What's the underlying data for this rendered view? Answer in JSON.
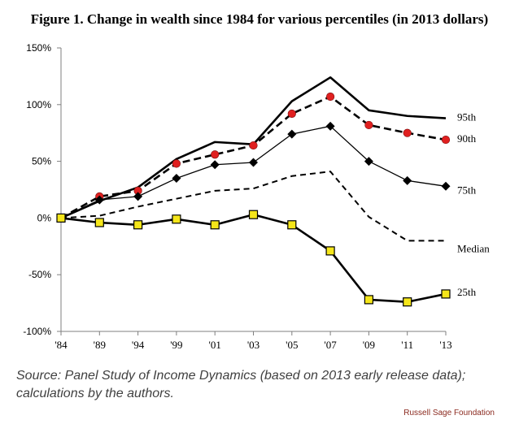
{
  "title": "Figure 1. Change in wealth since 1984 for various percentiles (in 2013 dollars)",
  "source": "Source: Panel Study of Income Dynamics (based on 2013 early release data); calculations by the authors.",
  "credit": "Russell Sage Foundation",
  "chart_data": {
    "type": "line",
    "categories": [
      "'84",
      "'89",
      "'94",
      "'99",
      "'01",
      "'03",
      "'05",
      "'07",
      "'09",
      "'11",
      "'13"
    ],
    "y_tick_labels": [
      "150%",
      "100%",
      "50%",
      "0%",
      "-50%",
      "-100%"
    ],
    "ylim": [
      -100,
      150
    ],
    "yticks": [
      150,
      100,
      50,
      0,
      -50,
      -100
    ],
    "grid": false,
    "legend": "labels at right end of lines",
    "series": [
      {
        "name": "95th",
        "style": "solid-thick",
        "marker": "none",
        "color": "#000000",
        "values": [
          0,
          15,
          27,
          52,
          67,
          65,
          103,
          124,
          95,
          90,
          88
        ]
      },
      {
        "name": "90th",
        "style": "dashed-thick",
        "marker": "red-circle",
        "color": "#000000",
        "marker_color": "#e02020",
        "values": [
          0,
          19,
          24,
          48,
          56,
          64,
          92,
          107,
          82,
          75,
          69
        ]
      },
      {
        "name": "75th",
        "style": "solid-thin",
        "marker": "black-diamond",
        "color": "#000000",
        "values": [
          0,
          16,
          19,
          35,
          47,
          49,
          74,
          81,
          50,
          33,
          28
        ]
      },
      {
        "name": "Median",
        "style": "dashed",
        "marker": "none",
        "color": "#000000",
        "values": [
          0,
          2,
          10,
          17,
          24,
          26,
          37,
          41,
          1,
          -20,
          -20
        ]
      },
      {
        "name": "25th",
        "style": "solid-thick",
        "marker": "yellow-square",
        "color": "#000000",
        "marker_color": "#f5e61a",
        "values": [
          0,
          -4,
          -6,
          -1,
          -6,
          3,
          -6,
          -29,
          -72,
          -74,
          -67
        ]
      }
    ]
  }
}
